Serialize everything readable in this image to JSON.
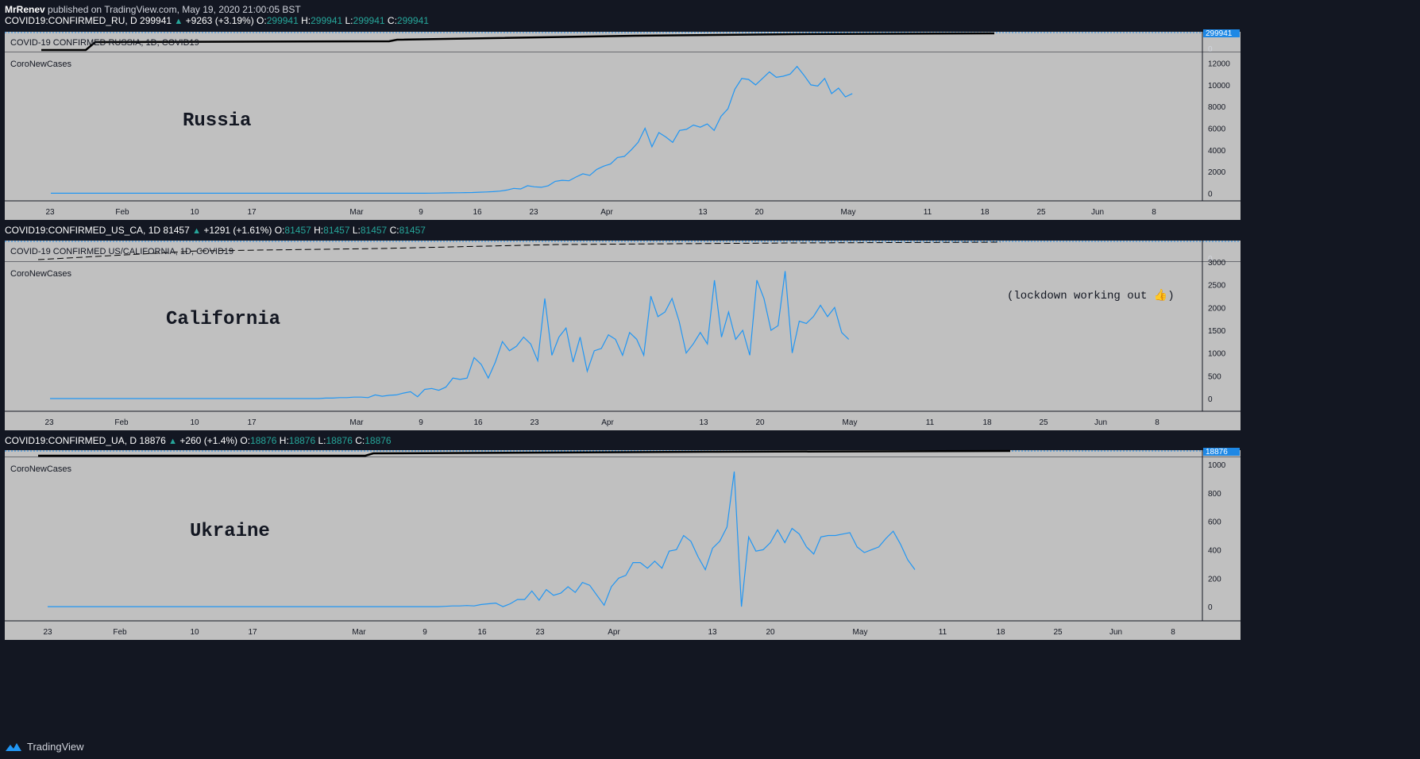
{
  "publish_line": {
    "author": "MrRenev",
    "text": "published on TradingView.com, May 19, 2020 21:00:05 BST"
  },
  "footer": {
    "brand": "TradingView"
  },
  "colors": {
    "background": "#131722",
    "pane": "#c0c0c0",
    "series": "#2196f3",
    "value": "#26a69a",
    "badge": "#1e88e5"
  },
  "panels": [
    {
      "id": "russia",
      "symbol": {
        "name": "COVID19:CONFIRMED_RU, D",
        "price": "299941",
        "change": "+9263 (+3.19%)",
        "o": "299941",
        "h": "299941",
        "l": "299941",
        "c": "299941"
      },
      "overlay_title": "COVID-19 CONFIRMED RUSSIA, 1D, COVID19",
      "overlay_ticks": [
        "0"
      ],
      "badge": "299941",
      "indicator_label": "CoroNewCases",
      "annotation": "Russia",
      "note": "",
      "y_ticks": [
        "12000",
        "10000",
        "8000",
        "6000",
        "4000",
        "2000",
        "0"
      ],
      "x_ticks": [
        "23",
        "Feb",
        "10",
        "17",
        "Mar",
        "9",
        "16",
        "23",
        "Apr",
        "13",
        "20",
        "May",
        "11",
        "18",
        "25",
        "Jun",
        "8"
      ]
    },
    {
      "id": "california",
      "symbol": {
        "name": "COVID19:CONFIRMED_US_CA, 1D",
        "price": "81457",
        "change": "+1291 (+1.61%)",
        "o": "81457",
        "h": "81457",
        "l": "81457",
        "c": "81457"
      },
      "overlay_title": "COVID-19 CONFIRMED US/CALIFORNIA, 1D, COVID19",
      "overlay_ticks": [
        "0"
      ],
      "badge": "",
      "indicator_label": "CoroNewCases",
      "annotation": "California",
      "note": "(lockdown working out 👍)",
      "y_ticks": [
        "3000",
        "2500",
        "2000",
        "1500",
        "1000",
        "500",
        "0"
      ],
      "x_ticks": [
        "23",
        "Feb",
        "10",
        "17",
        "Mar",
        "9",
        "16",
        "23",
        "Apr",
        "13",
        "20",
        "May",
        "11",
        "18",
        "25",
        "Jun",
        "8"
      ]
    },
    {
      "id": "ukraine",
      "symbol": {
        "name": "COVID19:CONFIRMED_UA, D",
        "price": "18876",
        "change": "+260 (+1.4%)",
        "o": "18876",
        "h": "18876",
        "l": "18876",
        "c": "18876"
      },
      "overlay_title": "",
      "overlay_ticks": [],
      "badge": "18876",
      "indicator_label": "CoroNewCases",
      "annotation": "Ukraine",
      "note": "",
      "y_ticks": [
        "1000",
        "800",
        "600",
        "400",
        "200",
        "0"
      ],
      "x_ticks": [
        "23",
        "Feb",
        "10",
        "17",
        "Mar",
        "9",
        "16",
        "23",
        "Apr",
        "13",
        "20",
        "May",
        "11",
        "18",
        "25",
        "Jun",
        "8"
      ]
    }
  ],
  "chart_data": [
    {
      "type": "line",
      "title": "Russia",
      "xlabel": "",
      "ylabel": "",
      "ylim": [
        -700,
        13000
      ],
      "x_start": "2020-01-23",
      "x_end": "2020-05-19",
      "series": [
        {
          "name": "CoroNewCases",
          "values": [
            0,
            0,
            0,
            0,
            0,
            0,
            0,
            0,
            0,
            0,
            0,
            0,
            0,
            0,
            0,
            0,
            0,
            0,
            0,
            0,
            0,
            0,
            0,
            0,
            0,
            0,
            0,
            0,
            0,
            0,
            0,
            0,
            0,
            0,
            0,
            0,
            0,
            0,
            0,
            0,
            0,
            0,
            0,
            0,
            0,
            0,
            0,
            0,
            0,
            0,
            0,
            0,
            0,
            0,
            0,
            10,
            20,
            30,
            40,
            50,
            60,
            70,
            100,
            120,
            150,
            200,
            300,
            450,
            400,
            700,
            600,
            550,
            700,
            1100,
            1200,
            1150,
            1500,
            1800,
            1650,
            2200,
            2500,
            2700,
            3300,
            3400,
            4000,
            4700,
            6000,
            4300,
            5600,
            5200,
            4700,
            5800,
            5900,
            6300,
            6100,
            6400,
            5800,
            7100,
            7800,
            9600,
            10600,
            10500,
            10000,
            10600,
            11200,
            10700,
            10800,
            11000,
            11700,
            10900,
            10000,
            9900,
            10600,
            9200,
            9700,
            8900,
            9200
          ]
        }
      ]
    },
    {
      "type": "line",
      "title": "California",
      "xlabel": "",
      "ylabel": "",
      "ylim": [
        -280,
        3000
      ],
      "x_start": "2020-01-23",
      "x_end": "2020-05-18",
      "series": [
        {
          "name": "CoroNewCases",
          "values": [
            0,
            0,
            0,
            0,
            0,
            0,
            0,
            0,
            0,
            0,
            0,
            0,
            0,
            0,
            0,
            0,
            0,
            0,
            0,
            0,
            0,
            0,
            0,
            0,
            0,
            0,
            0,
            0,
            0,
            0,
            0,
            0,
            0,
            0,
            0,
            0,
            0,
            0,
            0,
            10,
            10,
            20,
            20,
            30,
            30,
            20,
            80,
            50,
            70,
            80,
            120,
            150,
            40,
            200,
            220,
            180,
            250,
            450,
            420,
            450,
            900,
            750,
            450,
            800,
            1250,
            1050,
            1150,
            1350,
            1200,
            830,
            2200,
            950,
            1350,
            1550,
            800,
            1350,
            600,
            1050,
            1100,
            1400,
            1300,
            950,
            1450,
            1300,
            950,
            2250,
            1800,
            1900,
            2200,
            1700,
            1000,
            1200,
            1450,
            1200,
            2600,
            1350,
            1900,
            1300,
            1500,
            950,
            2600,
            2200,
            1500,
            1600,
            2800,
            1000,
            1700,
            1650,
            1800,
            2050,
            1800,
            2000,
            1450,
            1300
          ]
        }
      ]
    },
    {
      "type": "line",
      "title": "Ukraine",
      "xlabel": "",
      "ylabel": "",
      "ylim": [
        -100,
        1050
      ],
      "x_start": "2020-01-23",
      "x_end": "2020-05-19",
      "series": [
        {
          "name": "CoroNewCases",
          "values": [
            0,
            0,
            0,
            0,
            0,
            0,
            0,
            0,
            0,
            0,
            0,
            0,
            0,
            0,
            0,
            0,
            0,
            0,
            0,
            0,
            0,
            0,
            0,
            0,
            0,
            0,
            0,
            0,
            0,
            0,
            0,
            0,
            0,
            0,
            0,
            0,
            0,
            0,
            0,
            0,
            0,
            0,
            0,
            0,
            0,
            0,
            0,
            0,
            0,
            0,
            0,
            0,
            0,
            0,
            0,
            2,
            5,
            5,
            8,
            5,
            15,
            20,
            25,
            0,
            20,
            50,
            50,
            110,
            45,
            120,
            80,
            95,
            140,
            100,
            170,
            150,
            80,
            10,
            140,
            200,
            220,
            310,
            310,
            270,
            320,
            270,
            390,
            400,
            500,
            460,
            350,
            260,
            410,
            460,
            560,
            950,
            0,
            490,
            390,
            400,
            450,
            540,
            450,
            550,
            510,
            420,
            370,
            490,
            500,
            500,
            510,
            520,
            420,
            380,
            400,
            420,
            480,
            530,
            440,
            330,
            260
          ]
        }
      ]
    }
  ]
}
